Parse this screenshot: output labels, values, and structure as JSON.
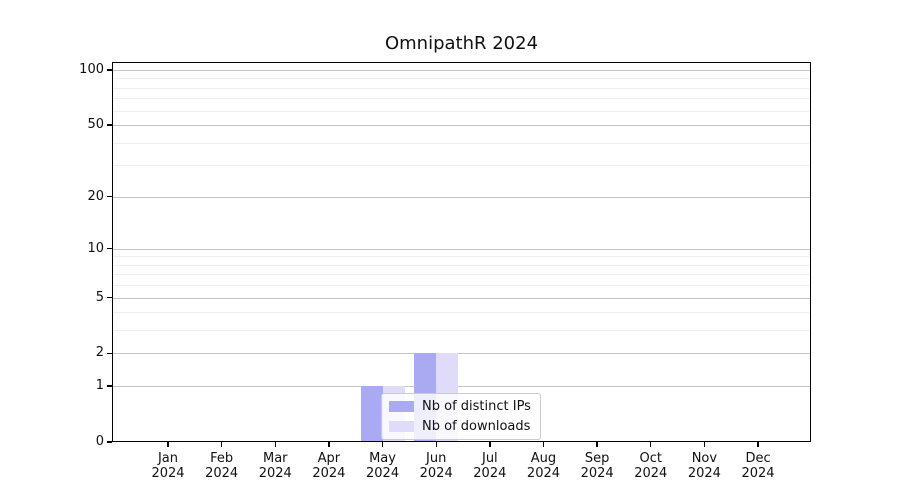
{
  "title": "OmnipathR 2024",
  "legend": {
    "items": [
      {
        "label": "Nb of distinct IPs",
        "color": "#a9aaf2"
      },
      {
        "label": "Nb of downloads",
        "color": "#dedcf8"
      }
    ]
  },
  "chart_data": {
    "type": "bar",
    "title": "OmnipathR 2024",
    "categories": [
      "Jan",
      "Feb",
      "Mar",
      "Apr",
      "May",
      "Jun",
      "Jul",
      "Aug",
      "Sep",
      "Oct",
      "Nov",
      "Dec"
    ],
    "category_year": "2024",
    "series": [
      {
        "name": "Nb of distinct IPs",
        "color": "#a9aaf2",
        "values": [
          0,
          0,
          0,
          0,
          1,
          2,
          0,
          0,
          0,
          0,
          0,
          0
        ]
      },
      {
        "name": "Nb of downloads",
        "color": "#dedcf8",
        "values": [
          0,
          0,
          0,
          0,
          1,
          2,
          0,
          0,
          0,
          0,
          0,
          0
        ]
      }
    ],
    "y_scale": "log1p",
    "ylim": [
      0,
      100
    ],
    "y_major_ticks": [
      0,
      1,
      2,
      5,
      10,
      20,
      50,
      100
    ],
    "y_minor_ticks": [
      3,
      4,
      6,
      7,
      8,
      9,
      30,
      40,
      60,
      70,
      80,
      90
    ],
    "grid": true,
    "legend_position": "inside-bottom-center"
  },
  "colors": {
    "grid_major": "#c6c6c6",
    "grid_minor": "#efefef",
    "axis": "#000000",
    "background": "#ffffff"
  }
}
